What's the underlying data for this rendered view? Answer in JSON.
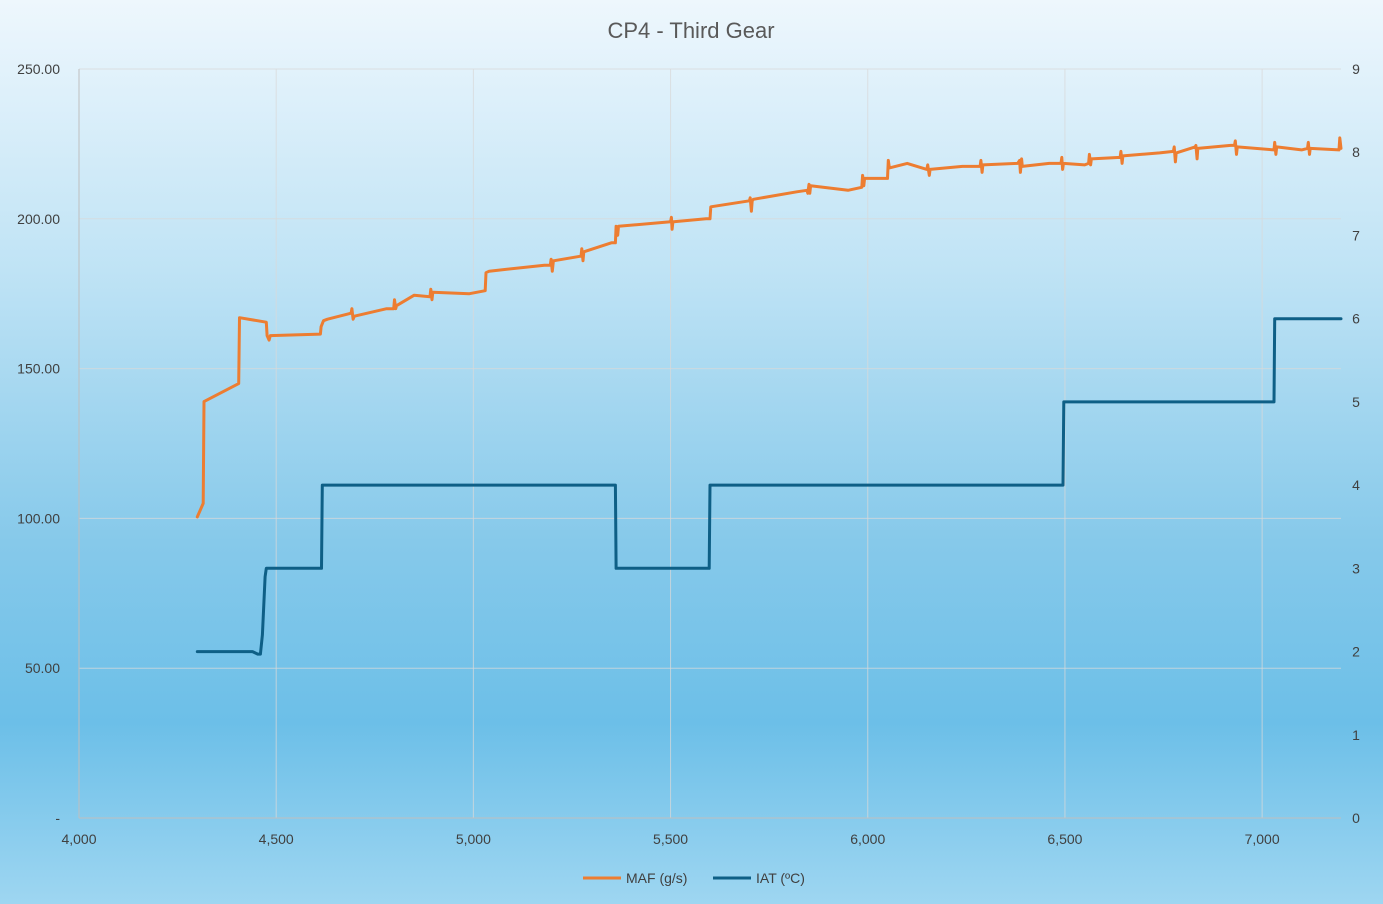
{
  "chart_data": {
    "type": "line",
    "title": "CP4 - Third Gear",
    "xlabel": "",
    "ylabel": "",
    "y2label": "",
    "xlim": [
      4000,
      7200
    ],
    "ylim": [
      0,
      250
    ],
    "y2lim": [
      0,
      9
    ],
    "grid": true,
    "legend_position": "bottom",
    "x_ticks": [
      4000,
      4500,
      5000,
      5500,
      6000,
      6500,
      7000
    ],
    "x_tick_labels": [
      "4,000",
      "4,500",
      "5,000",
      "5,500",
      "6,000",
      "6,500",
      "7,000"
    ],
    "y_ticks": [
      0,
      50,
      100,
      150,
      200,
      250
    ],
    "y_tick_labels": [
      "-",
      "50.00",
      "100.00",
      "150.00",
      "200.00",
      "250.00"
    ],
    "y2_ticks": [
      0,
      1,
      2,
      3,
      4,
      5,
      6,
      7,
      8,
      9
    ],
    "y2_tick_labels": [
      "0",
      "1",
      "2",
      "3",
      "4",
      "5",
      "6",
      "7",
      "8",
      "9"
    ],
    "series": [
      {
        "name": "MAF (g/s)",
        "axis": "left",
        "color": "#ed7d31",
        "x": [
          4300,
          4315,
          4317,
          4405,
          4407,
          4475,
          4477,
          4482,
          4485,
          4612,
          4614,
          4620,
          4630,
          4690,
          4692,
          4695,
          4698,
          4780,
          4798,
          4800,
          4803,
          4805,
          4850,
          4890,
          4892,
          4895,
          4897,
          4990,
          5030,
          5032,
          5040,
          5180,
          5195,
          5197,
          5200,
          5203,
          5205,
          5270,
          5273,
          5275,
          5278,
          5280,
          5350,
          5360,
          5362,
          5366,
          5368,
          5500,
          5502,
          5504,
          5506,
          5508,
          5590,
          5600,
          5602,
          5700,
          5702,
          5705,
          5707,
          5710,
          5820,
          5846,
          5848,
          5851,
          5853,
          5855,
          5950,
          5985,
          5987,
          5990,
          5992,
          6050,
          6052,
          6055,
          6100,
          6150,
          6152,
          6156,
          6158,
          6240,
          6285,
          6287,
          6290,
          6292,
          6380,
          6385,
          6387,
          6390,
          6392,
          6460,
          6490,
          6492,
          6494,
          6496,
          6550,
          6560,
          6562,
          6565,
          6567,
          6640,
          6642,
          6645,
          6647,
          6740,
          6775,
          6777,
          6780,
          6782,
          6830,
          6832,
          6835,
          6837,
          6920,
          6930,
          6932,
          6935,
          6937,
          7030,
          7032,
          7035,
          7037,
          7100,
          7115,
          7117,
          7120,
          7122,
          7195,
          7197,
          7200
        ],
        "values": [
          100.5,
          105,
          139,
          145,
          167,
          165.5,
          161,
          159.5,
          161,
          161.5,
          164,
          166,
          166.5,
          168.5,
          170,
          166.5,
          167.5,
          170,
          170,
          173,
          170,
          171,
          174.5,
          174,
          176.5,
          173,
          175.5,
          175,
          176,
          182,
          182.5,
          184.5,
          184.5,
          186.5,
          182.5,
          186,
          186,
          187.5,
          187.5,
          190,
          186,
          189,
          192,
          192,
          197.5,
          194.5,
          197.5,
          199,
          200.5,
          196.5,
          199,
          199,
          200,
          200,
          204,
          206,
          207,
          202.5,
          206,
          206.5,
          209,
          209.5,
          208.5,
          211.5,
          208.5,
          211,
          209.5,
          210.5,
          214.5,
          211,
          213.5,
          213.5,
          219.5,
          217,
          218.5,
          216.5,
          218,
          214.5,
          216.5,
          217.5,
          217.5,
          219.5,
          215.5,
          218,
          218.5,
          219.5,
          215.5,
          220,
          217.5,
          218.5,
          218.5,
          220.5,
          216.5,
          218.5,
          218,
          218.5,
          221.5,
          218,
          220,
          220.5,
          222.5,
          218.5,
          221,
          222,
          222.5,
          224,
          219,
          222,
          224,
          224.5,
          220,
          223.5,
          224.5,
          224.5,
          226,
          221.5,
          224,
          223,
          225.5,
          221.5,
          224,
          223,
          223.5,
          225.5,
          221.5,
          223.5,
          223,
          227,
          223.5
        ]
      },
      {
        "name": "IAT (ºC)",
        "axis": "right",
        "color": "#0e5f86",
        "x": [
          4300,
          4440,
          4453,
          4460,
          4465,
          4472,
          4475,
          4615,
          4617,
          5360,
          5362,
          5598,
          5600,
          6495,
          6497,
          7030,
          7032,
          7200
        ],
        "values": [
          2,
          2,
          1.97,
          1.97,
          2.2,
          2.9,
          3,
          3,
          4,
          4,
          3,
          3,
          4,
          4,
          5,
          5,
          6,
          6
        ]
      }
    ]
  }
}
